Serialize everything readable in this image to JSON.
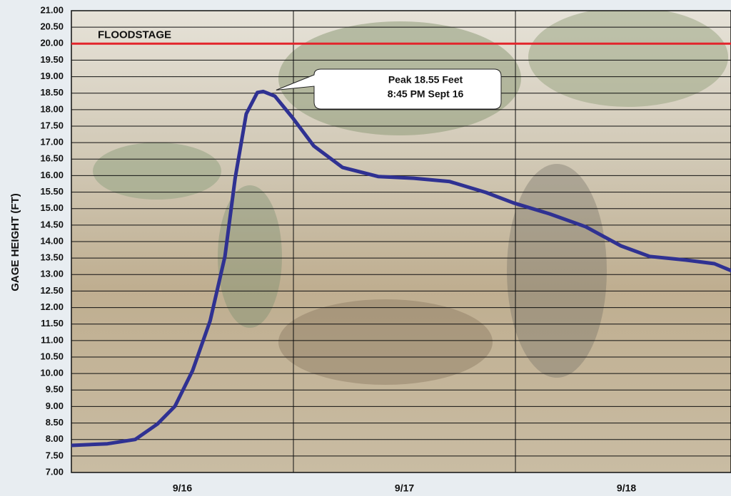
{
  "chart_data": {
    "type": "line",
    "y_label": "GAGE HEIGHT (FT)",
    "x": [
      0,
      3.9,
      6.9,
      9.3,
      11.2,
      13.1,
      15.0,
      16.6,
      17.7,
      18.9,
      20.1,
      20.75,
      22.0,
      23.9,
      26.2,
      29.3,
      33.2,
      37.0,
      40.9,
      44.8,
      47.8,
      51.7,
      55.6,
      59.4,
      62.5,
      66.4,
      69.5,
      71.3
    ],
    "series": [
      {
        "color": "#2f3192",
        "values": [
          7.82,
          7.87,
          8.0,
          8.47,
          9.01,
          10.09,
          11.6,
          13.55,
          15.92,
          17.87,
          18.52,
          18.55,
          18.41,
          17.76,
          16.9,
          16.25,
          15.97,
          15.92,
          15.82,
          15.49,
          15.17,
          14.84,
          14.45,
          13.87,
          13.55,
          13.44,
          13.33,
          13.12
        ]
      }
    ],
    "xlim": [
      0,
      71.3
    ],
    "xticks": [
      {
        "value": 12,
        "label": "9/16"
      },
      {
        "value": 36,
        "label": "9/17"
      },
      {
        "value": 60,
        "label": "9/18"
      }
    ],
    "x_gridlines": [
      24,
      48
    ],
    "ylim": [
      7,
      21
    ],
    "yticks": [
      {
        "value": 7,
        "label": "7.00"
      },
      {
        "value": 7.5,
        "label": "7.50"
      },
      {
        "value": 8,
        "label": "8.00"
      },
      {
        "value": 8.5,
        "label": "8.50"
      },
      {
        "value": 9,
        "label": "9.00"
      },
      {
        "value": 9.5,
        "label": "9.50"
      },
      {
        "value": 10,
        "label": "10.00"
      },
      {
        "value": 10.5,
        "label": "10.50"
      },
      {
        "value": 11,
        "label": "11.00"
      },
      {
        "value": 11.5,
        "label": "11.50"
      },
      {
        "value": 12,
        "label": "12.00"
      },
      {
        "value": 12.5,
        "label": "12.50"
      },
      {
        "value": 13,
        "label": "13.00"
      },
      {
        "value": 13.5,
        "label": "13.50"
      },
      {
        "value": 14,
        "label": "14.00"
      },
      {
        "value": 14.5,
        "label": "14.50"
      },
      {
        "value": 15,
        "label": "15.00"
      },
      {
        "value": 15.5,
        "label": "15.50"
      },
      {
        "value": 16,
        "label": "16.00"
      },
      {
        "value": 16.5,
        "label": "16.50"
      },
      {
        "value": 17,
        "label": "17.00"
      },
      {
        "value": 17.5,
        "label": "17.50"
      },
      {
        "value": 18,
        "label": "18.00"
      },
      {
        "value": 18.5,
        "label": "18.50"
      },
      {
        "value": 19,
        "label": "19.00"
      },
      {
        "value": 19.5,
        "label": "19.50"
      },
      {
        "value": 20,
        "label": "20.00"
      },
      {
        "value": 20.5,
        "label": "20.50"
      },
      {
        "value": 21,
        "label": "21.00"
      }
    ],
    "grid": true,
    "reference_line": {
      "value": 20,
      "label": "FLOODSTAGE",
      "color": "#e3242b"
    },
    "annotation": {
      "lines": [
        "Peak 18.55 Feet",
        "8:45 PM Sept 16"
      ],
      "x": 20.75,
      "y": 18.55
    }
  }
}
